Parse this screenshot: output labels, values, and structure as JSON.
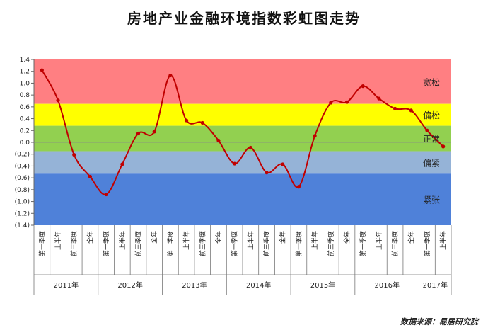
{
  "title": "房地产业金融环境指数彩虹图走势",
  "source": "数据来源：易居研究院",
  "chart_data": {
    "type": "line",
    "title": "房地产业金融环境指数彩虹图走势",
    "ylim": [
      -1.4,
      1.4
    ],
    "y_ticks": [
      "1.4",
      "1.2",
      "1.0",
      "0.8",
      "0.6",
      "0.4",
      "0.2",
      "0.0",
      "(0.2)",
      "(0.4)",
      "(0.6)",
      "(0.8)",
      "(1.0)",
      "(1.2)",
      "(1.4)"
    ],
    "y_tick_values": [
      1.4,
      1.2,
      1.0,
      0.8,
      0.6,
      0.4,
      0.2,
      0.0,
      -0.2,
      -0.4,
      -0.6,
      -0.8,
      -1.0,
      -1.2,
      -1.4
    ],
    "bands": [
      {
        "label": "宽松",
        "from": 0.65,
        "to": 1.4,
        "color": "#ff7f82"
      },
      {
        "label": "偏松",
        "from": 0.28,
        "to": 0.65,
        "color": "#ffff00"
      },
      {
        "label": "正常",
        "from": -0.15,
        "to": 0.28,
        "color": "#92d050"
      },
      {
        "label": "偏紧",
        "from": -0.53,
        "to": -0.15,
        "color": "#95b3d7"
      },
      {
        "label": "紧张",
        "from": -1.4,
        "to": -0.53,
        "color": "#4f81d9"
      }
    ],
    "categories": [
      "第一季度",
      "上半年",
      "前三季度",
      "全年",
      "第一季度",
      "上半年",
      "前三季度",
      "全年",
      "第一季度",
      "上半年",
      "前三季度",
      "全年",
      "第一季度",
      "上半年",
      "前三季度",
      "全年",
      "第一季度",
      "上半年",
      "前三季度",
      "全年",
      "第一季度",
      "上半年",
      "前三季度",
      "全年",
      "第一季度",
      "上半年"
    ],
    "years": [
      {
        "label": "2011年",
        "count": 4
      },
      {
        "label": "2012年",
        "count": 4
      },
      {
        "label": "2013年",
        "count": 4
      },
      {
        "label": "2014年",
        "count": 4
      },
      {
        "label": "2015年",
        "count": 4
      },
      {
        "label": "2016年",
        "count": 4
      },
      {
        "label": "2017年",
        "count": 2
      }
    ],
    "series": [
      {
        "color": "#c00000",
        "values": [
          1.22,
          0.71,
          -0.21,
          -0.58,
          -0.88,
          -0.37,
          0.15,
          0.18,
          1.13,
          0.37,
          0.33,
          0.03,
          -0.36,
          -0.09,
          -0.51,
          -0.37,
          -0.75,
          0.11,
          0.67,
          0.68,
          0.95,
          0.74,
          0.57,
          0.54,
          0.2,
          -0.07
        ]
      }
    ],
    "grid": false
  }
}
